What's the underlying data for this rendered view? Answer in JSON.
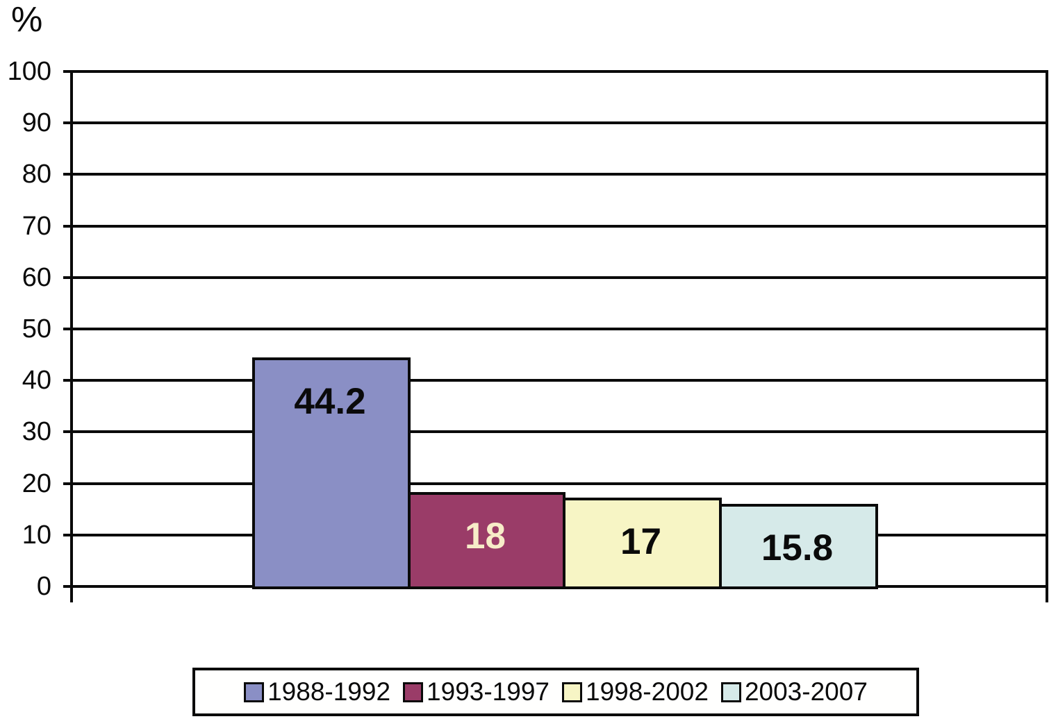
{
  "chart_data": {
    "type": "bar",
    "title": "",
    "xlabel": "",
    "ylabel": "%",
    "ylim": [
      0,
      100
    ],
    "yticks": [
      0,
      10,
      20,
      30,
      40,
      50,
      60,
      70,
      80,
      90,
      100
    ],
    "grid": true,
    "legend_position": "bottom",
    "axis_color": "#0a0a0a",
    "categories": [
      ""
    ],
    "series": [
      {
        "name": "1988-1992",
        "value": 44.2,
        "label": "44.2",
        "color": "#8A8FC5",
        "label_color": "#0a0a0a"
      },
      {
        "name": "1993-1997",
        "value": 18,
        "label": "18",
        "color": "#9A3C68",
        "label_color": "#F7ECC8"
      },
      {
        "name": "1998-2002",
        "value": 17,
        "label": "17",
        "color": "#F7F5C5",
        "label_color": "#0a0a0a"
      },
      {
        "name": "2003-2007",
        "value": 15.8,
        "label": "15.8",
        "color": "#D6EAE9",
        "label_color": "#0a0a0a"
      }
    ]
  }
}
